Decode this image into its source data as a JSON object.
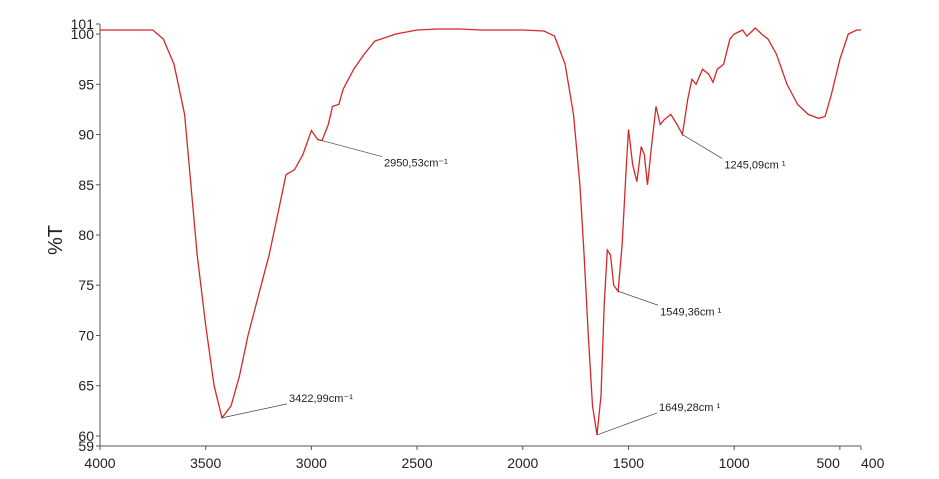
{
  "chart_data": {
    "type": "line",
    "y_label": "%T",
    "x": [
      4000,
      3750,
      3700,
      3650,
      3600,
      3570,
      3540,
      3500,
      3460,
      3423,
      3380,
      3340,
      3300,
      3250,
      3200,
      3150,
      3120,
      3080,
      3040,
      3000,
      2970,
      2950,
      2920,
      2900,
      2870,
      2850,
      2800,
      2750,
      2700,
      2600,
      2500,
      2400,
      2300,
      2200,
      2000,
      1900,
      1850,
      1800,
      1760,
      1730,
      1710,
      1690,
      1670,
      1649,
      1630,
      1615,
      1600,
      1585,
      1570,
      1549,
      1530,
      1510,
      1500,
      1480,
      1460,
      1440,
      1425,
      1410,
      1390,
      1370,
      1350,
      1330,
      1300,
      1270,
      1245,
      1220,
      1200,
      1180,
      1150,
      1120,
      1100,
      1080,
      1050,
      1020,
      1000,
      960,
      940,
      900,
      870,
      840,
      800,
      750,
      700,
      650,
      600,
      570,
      540,
      500,
      460,
      420,
      400
    ],
    "series": [
      {
        "color": "#d62728",
        "values": [
          100.4,
          100.4,
          99.5,
          97,
          92,
          85,
          78,
          71,
          65,
          61.8,
          63,
          66,
          70,
          74,
          78,
          83,
          86,
          86.5,
          88,
          90.4,
          89.5,
          89.4,
          91,
          92.8,
          93,
          94.5,
          96.5,
          98,
          99.3,
          100,
          100.4,
          100.5,
          100.5,
          100.4,
          100.4,
          100.3,
          99.8,
          97,
          92,
          85,
          78,
          70,
          63,
          60.1,
          64,
          73,
          78.5,
          78,
          75,
          74.4,
          79,
          87,
          90.5,
          87,
          85.3,
          88.8,
          88,
          85,
          89,
          92.8,
          91,
          91.5,
          92,
          91,
          90,
          93.5,
          95.5,
          95,
          96.5,
          96,
          95.2,
          96.5,
          97,
          99.5,
          100,
          100.4,
          99.8,
          100.6,
          100,
          99.5,
          98,
          95,
          93,
          92,
          91.6,
          91.8,
          94,
          97.5,
          100,
          100.4,
          100.4
        ]
      }
    ],
    "xlim": [
      4000,
      400
    ],
    "xticks": [
      4000,
      3500,
      3000,
      2500,
      2000,
      1500,
      1000,
      500,
      400
    ],
    "ylim": [
      59,
      101
    ],
    "yticks": [
      59,
      60,
      65,
      70,
      75,
      80,
      85,
      90,
      95,
      100,
      101
    ],
    "annotations": [
      {
        "text": "3422,99cm⁻¹",
        "x": 3423,
        "y": 61.8
      },
      {
        "text": "2950,53cm⁻¹",
        "x": 2950,
        "y": 89.4
      },
      {
        "text": "1649,28cm ¹",
        "x": 1649,
        "y": 60.1
      },
      {
        "text": "1549,36cm ¹",
        "x": 1549,
        "y": 74.4
      },
      {
        "text": "1245,09cm ¹",
        "x": 1245,
        "y": 90
      }
    ]
  }
}
